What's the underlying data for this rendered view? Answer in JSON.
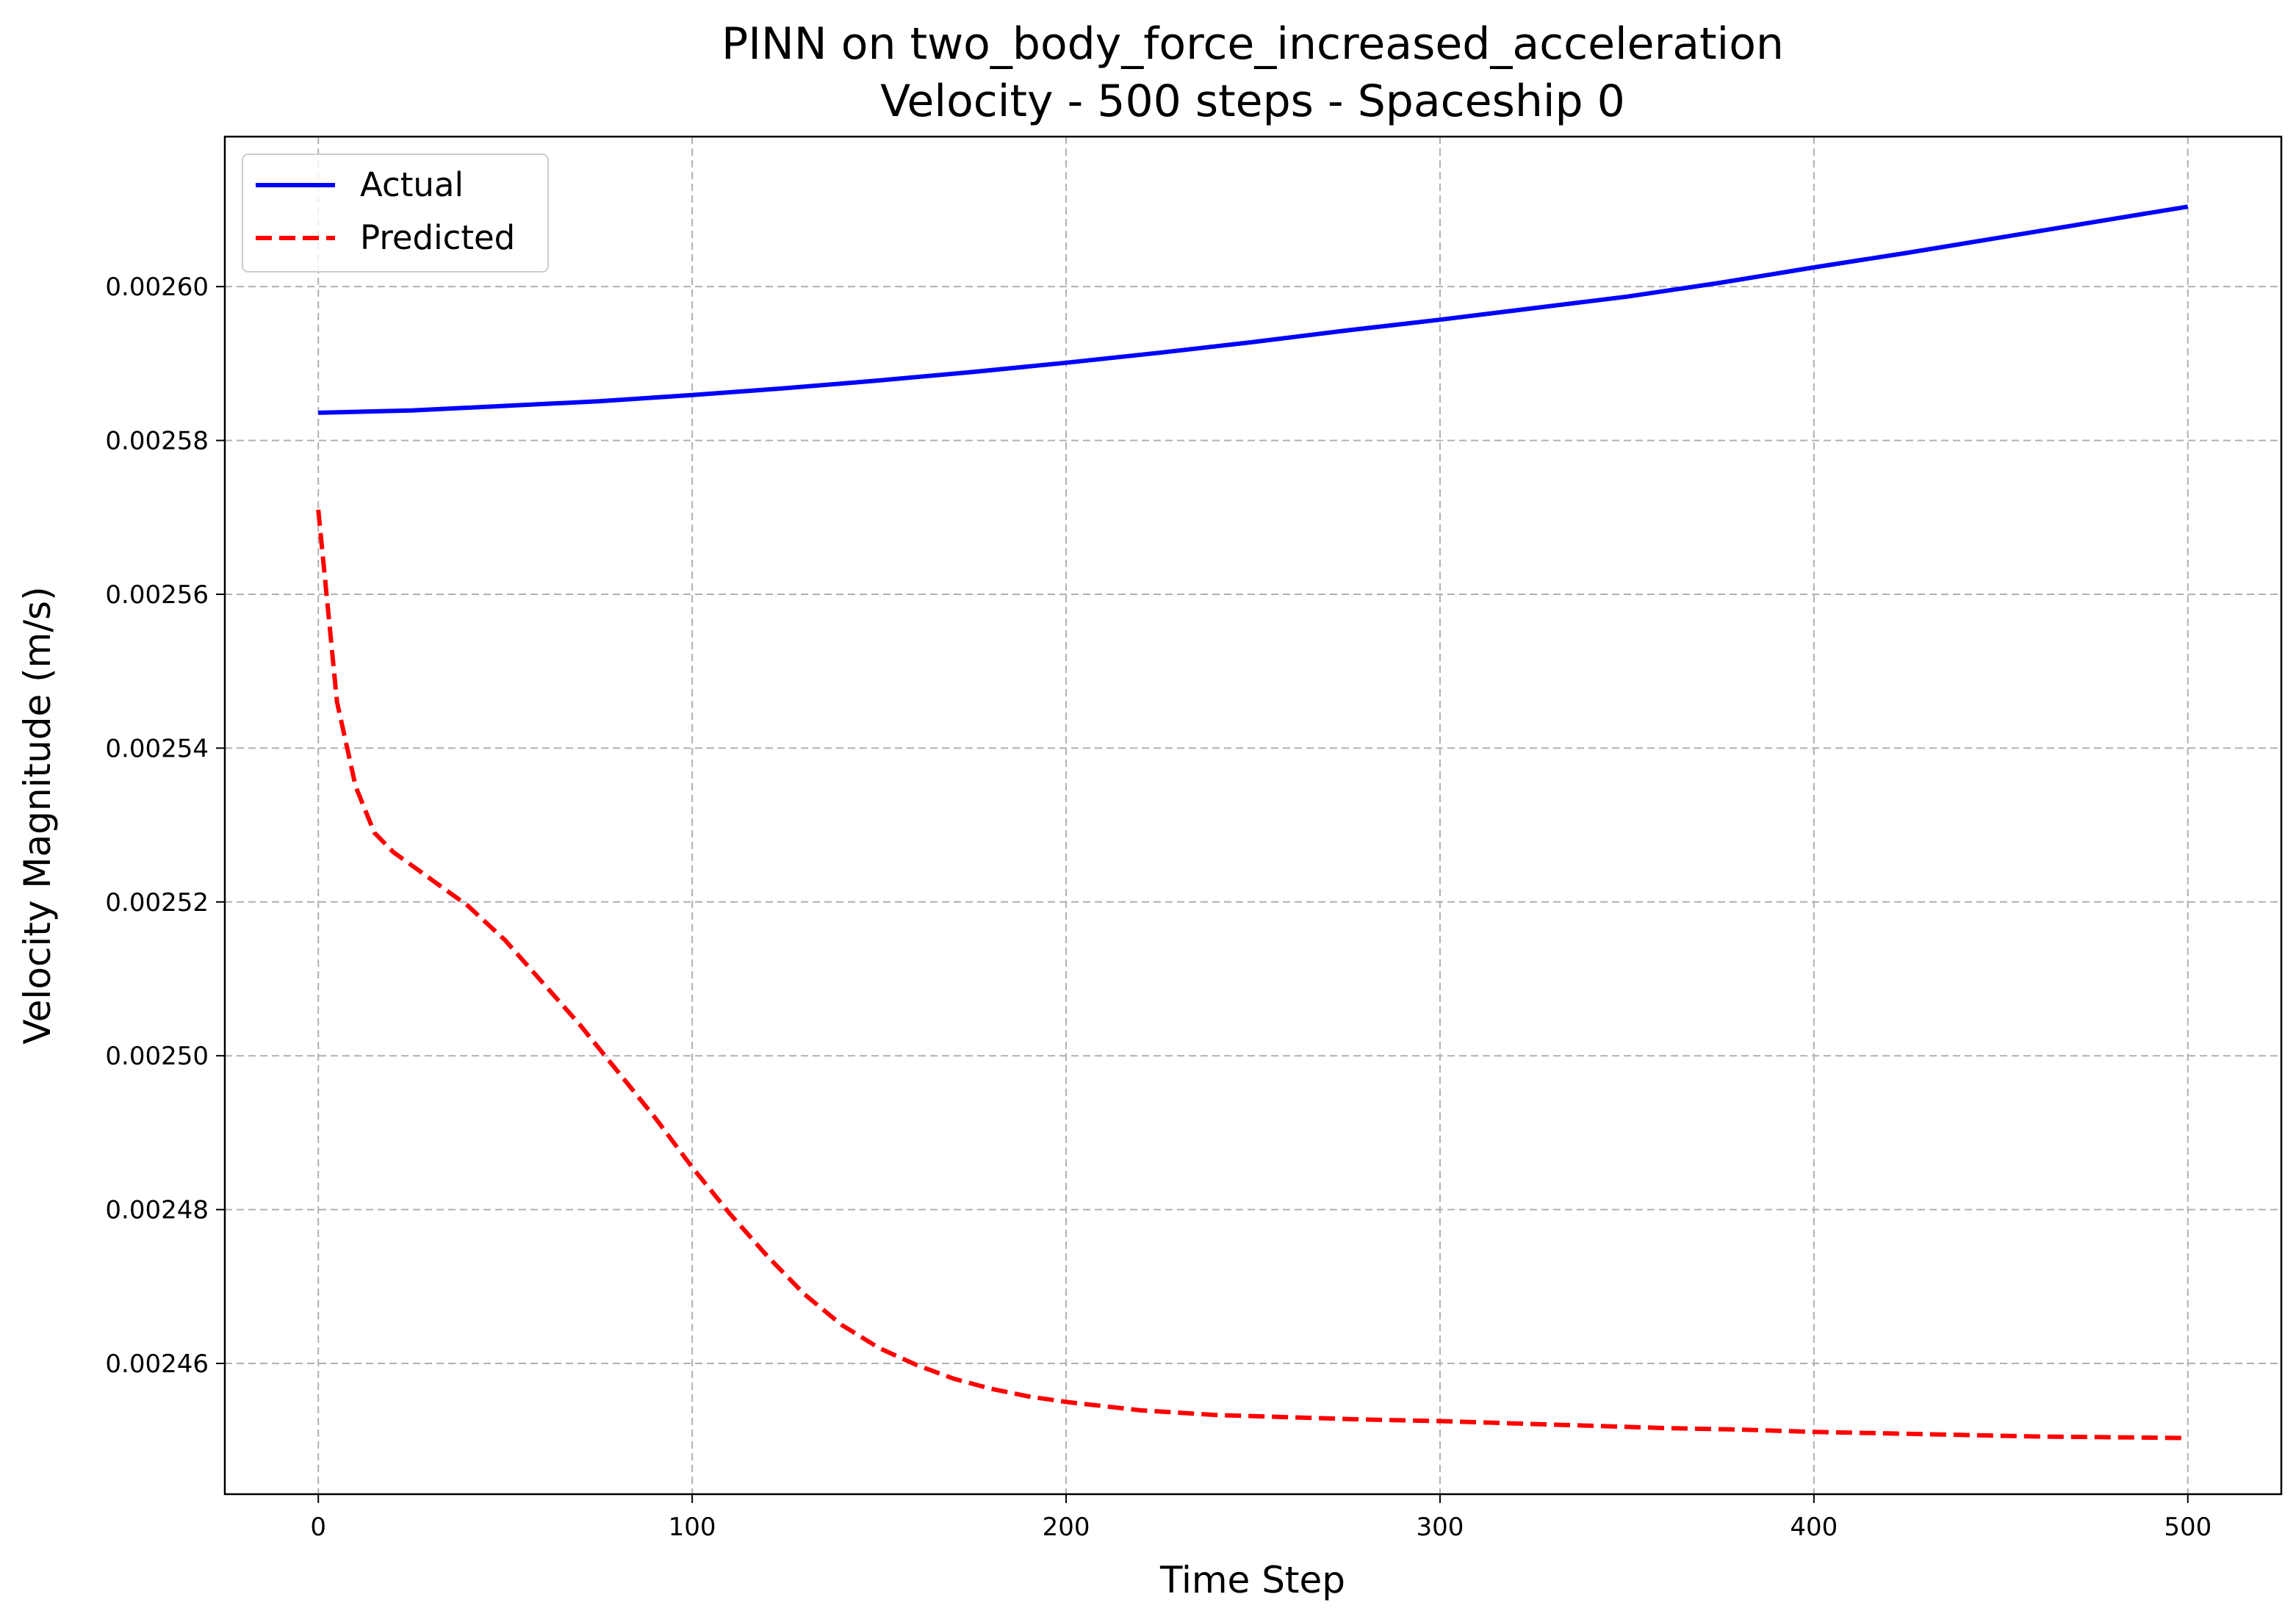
{
  "chart_data": {
    "type": "line",
    "title": "PINN on two_body_force_increased_acceleration",
    "subtitle": "Velocity - 500 steps - Spaceship 0",
    "xlabel": "Time Step",
    "ylabel": "Velocity Magnitude (m/s)",
    "xlim": [
      -25,
      525
    ],
    "ylim": [
      0.002443,
      0.0026195
    ],
    "x_ticks": [
      0,
      100,
      200,
      300,
      400,
      500
    ],
    "x_tick_labels": [
      "0",
      "100",
      "200",
      "300",
      "400",
      "500"
    ],
    "y_ticks": [
      0.00246,
      0.00248,
      0.0025,
      0.00252,
      0.00254,
      0.00256,
      0.00258,
      0.0026
    ],
    "y_tick_labels": [
      "0.00246",
      "0.00248",
      "0.00250",
      "0.00252",
      "0.00254",
      "0.00256",
      "0.00258",
      "0.00260"
    ],
    "grid": true,
    "legend_position": "top-left",
    "series": [
      {
        "name": "Actual",
        "color": "#0000ff",
        "style": "solid",
        "x": [
          0,
          25,
          50,
          75,
          100,
          125,
          150,
          175,
          200,
          225,
          250,
          275,
          300,
          325,
          350,
          375,
          400,
          425,
          450,
          475,
          500
        ],
        "y": [
          0.0025836,
          0.0025839,
          0.0025845,
          0.0025851,
          0.0025859,
          0.0025868,
          0.0025878,
          0.0025889,
          0.0025901,
          0.0025914,
          0.0025928,
          0.0025943,
          0.0025957,
          0.0025972,
          0.0025987,
          0.0026005,
          0.0026025,
          0.0026044,
          0.0026064,
          0.0026084,
          0.0026104
        ]
      },
      {
        "name": "Predicted",
        "color": "#ff0000",
        "style": "dashed",
        "x": [
          0,
          5,
          10,
          15,
          20,
          30,
          40,
          50,
          60,
          70,
          80,
          90,
          100,
          110,
          120,
          130,
          140,
          150,
          160,
          170,
          180,
          190,
          200,
          220,
          240,
          260,
          280,
          300,
          320,
          340,
          360,
          380,
          400,
          420,
          440,
          460,
          480,
          500
        ],
        "y": [
          0.002571,
          0.002546,
          0.002535,
          0.002529,
          0.0025265,
          0.002523,
          0.0025195,
          0.002515,
          0.0025095,
          0.002504,
          0.002498,
          0.002492,
          0.0024855,
          0.0024795,
          0.002474,
          0.002469,
          0.002465,
          0.002462,
          0.0024598,
          0.002458,
          0.0024567,
          0.0024557,
          0.002455,
          0.0024539,
          0.0024533,
          0.002453,
          0.0024527,
          0.0024525,
          0.0024522,
          0.0024519,
          0.0024516,
          0.0024514,
          0.0024511,
          0.0024509,
          0.0024507,
          0.0024505,
          0.0024504,
          0.0024503
        ]
      }
    ]
  }
}
